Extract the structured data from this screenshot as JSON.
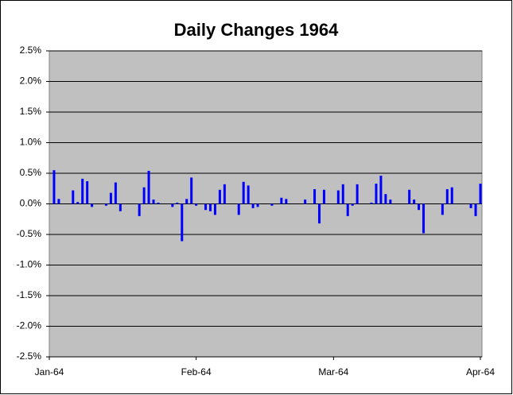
{
  "chart_data": {
    "type": "bar",
    "title": "Daily Changes 1964",
    "categories": [
      "Jan-64",
      null,
      null,
      null,
      null,
      null,
      null,
      null,
      null,
      null,
      null,
      null,
      null,
      null,
      null,
      null,
      null,
      null,
      null,
      null,
      null,
      null,
      null,
      null,
      null,
      null,
      null,
      null,
      null,
      null,
      null,
      "Feb-64",
      null,
      null,
      null,
      null,
      null,
      null,
      null,
      null,
      null,
      null,
      null,
      null,
      null,
      null,
      null,
      null,
      null,
      null,
      null,
      null,
      null,
      null,
      null,
      null,
      null,
      null,
      null,
      null,
      "Mar-64",
      null,
      null,
      null,
      null,
      null,
      null,
      null,
      null,
      null,
      null,
      null,
      null,
      null,
      null,
      null,
      null,
      null,
      null,
      null,
      null,
      null,
      null,
      null,
      null,
      null,
      null,
      null,
      null,
      null,
      null,
      "Apr-64"
    ],
    "values": [
      null,
      0.55,
      0.08,
      null,
      null,
      0.22,
      0.03,
      0.41,
      0.37,
      -0.05,
      null,
      null,
      -0.03,
      0.18,
      0.35,
      -0.12,
      null,
      null,
      null,
      -0.2,
      0.27,
      0.54,
      0.07,
      0.02,
      null,
      null,
      -0.05,
      0.02,
      -0.61,
      0.08,
      0.43,
      -0.03,
      null,
      -0.1,
      -0.12,
      -0.18,
      0.23,
      0.32,
      null,
      null,
      -0.18,
      0.36,
      0.3,
      -0.07,
      -0.05,
      null,
      null,
      -0.03,
      null,
      0.1,
      0.08,
      null,
      null,
      null,
      0.07,
      null,
      0.24,
      -0.32,
      0.23,
      null,
      null,
      0.22,
      0.32,
      -0.2,
      -0.03,
      0.32,
      null,
      null,
      0.02,
      0.33,
      0.46,
      0.16,
      0.07,
      null,
      null,
      null,
      0.23,
      0.07,
      -0.1,
      -0.48,
      null,
      null,
      null,
      -0.18,
      0.24,
      0.27,
      null,
      null,
      null,
      -0.07,
      -0.2,
      0.33
    ],
    "color": "#0000ff",
    "ylim": [
      -2.5,
      2.5
    ],
    "yticks": [
      {
        "value": -2.5,
        "label": "-2.5%"
      },
      {
        "value": -2.0,
        "label": "-2.0%"
      },
      {
        "value": -1.5,
        "label": "-1.5%"
      },
      {
        "value": -1.0,
        "label": "-1.0%"
      },
      {
        "value": -0.5,
        "label": "-0.5%"
      },
      {
        "value": 0,
        "label": "0.0%"
      },
      {
        "value": 0.5,
        "label": "0.5%"
      },
      {
        "value": 1.0,
        "label": "1.0%"
      },
      {
        "value": 1.5,
        "label": "1.5%"
      },
      {
        "value": 2.0,
        "label": "2.0%"
      },
      {
        "value": 2.5,
        "label": "2.5%"
      }
    ],
    "grid": true
  }
}
